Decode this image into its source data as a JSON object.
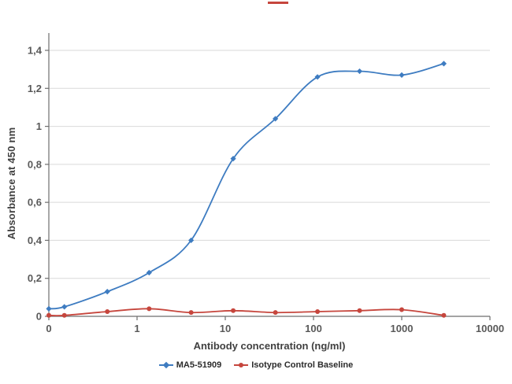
{
  "chart_data": {
    "type": "line",
    "title": "",
    "xlabel": "Antibody concentration (ng/ml)",
    "ylabel": "Absorbance at 450 nm",
    "x_scale": "log",
    "xlim": [
      0.1,
      10000
    ],
    "ylim": [
      0,
      1.4
    ],
    "grid": "horizontal",
    "legend_position": "bottom",
    "x_ticks": [
      {
        "value": 0.1,
        "label": "0"
      },
      {
        "value": 1,
        "label": "1"
      },
      {
        "value": 10,
        "label": "10"
      },
      {
        "value": 100,
        "label": "100"
      },
      {
        "value": 1000,
        "label": "1000"
      },
      {
        "value": 10000,
        "label": "10000"
      }
    ],
    "y_ticks": [
      {
        "value": 0,
        "label": "0"
      },
      {
        "value": 0.2,
        "label": "0,2"
      },
      {
        "value": 0.4,
        "label": "0,4"
      },
      {
        "value": 0.6,
        "label": "0,6"
      },
      {
        "value": 0.8,
        "label": "0,8"
      },
      {
        "value": 1,
        "label": "1"
      },
      {
        "value": 1.2,
        "label": "1,2"
      },
      {
        "value": 1.4,
        "label": "1,4"
      }
    ],
    "x": [
      0.05,
      0.15,
      0.46,
      1.37,
      4.1,
      12.3,
      37,
      111,
      333,
      1000,
      3000
    ],
    "series": [
      {
        "name": "MA5-51909",
        "color": "#3E7CC1",
        "marker": "diamond",
        "values": [
          0.04,
          0.05,
          0.13,
          0.23,
          0.4,
          0.83,
          1.04,
          1.26,
          1.29,
          1.27,
          1.33
        ]
      },
      {
        "name": "Isotype Control Baseline",
        "color": "#C6463D",
        "marker": "circle",
        "values": [
          0.005,
          0.005,
          0.025,
          0.04,
          0.02,
          0.03,
          0.02,
          0.025,
          0.03,
          0.035,
          0.005
        ]
      }
    ],
    "colors": {
      "grid": "#D9D9D9",
      "axis": "#6E6E6E",
      "tick_label": "#595959",
      "axis_title": "#404040"
    }
  }
}
